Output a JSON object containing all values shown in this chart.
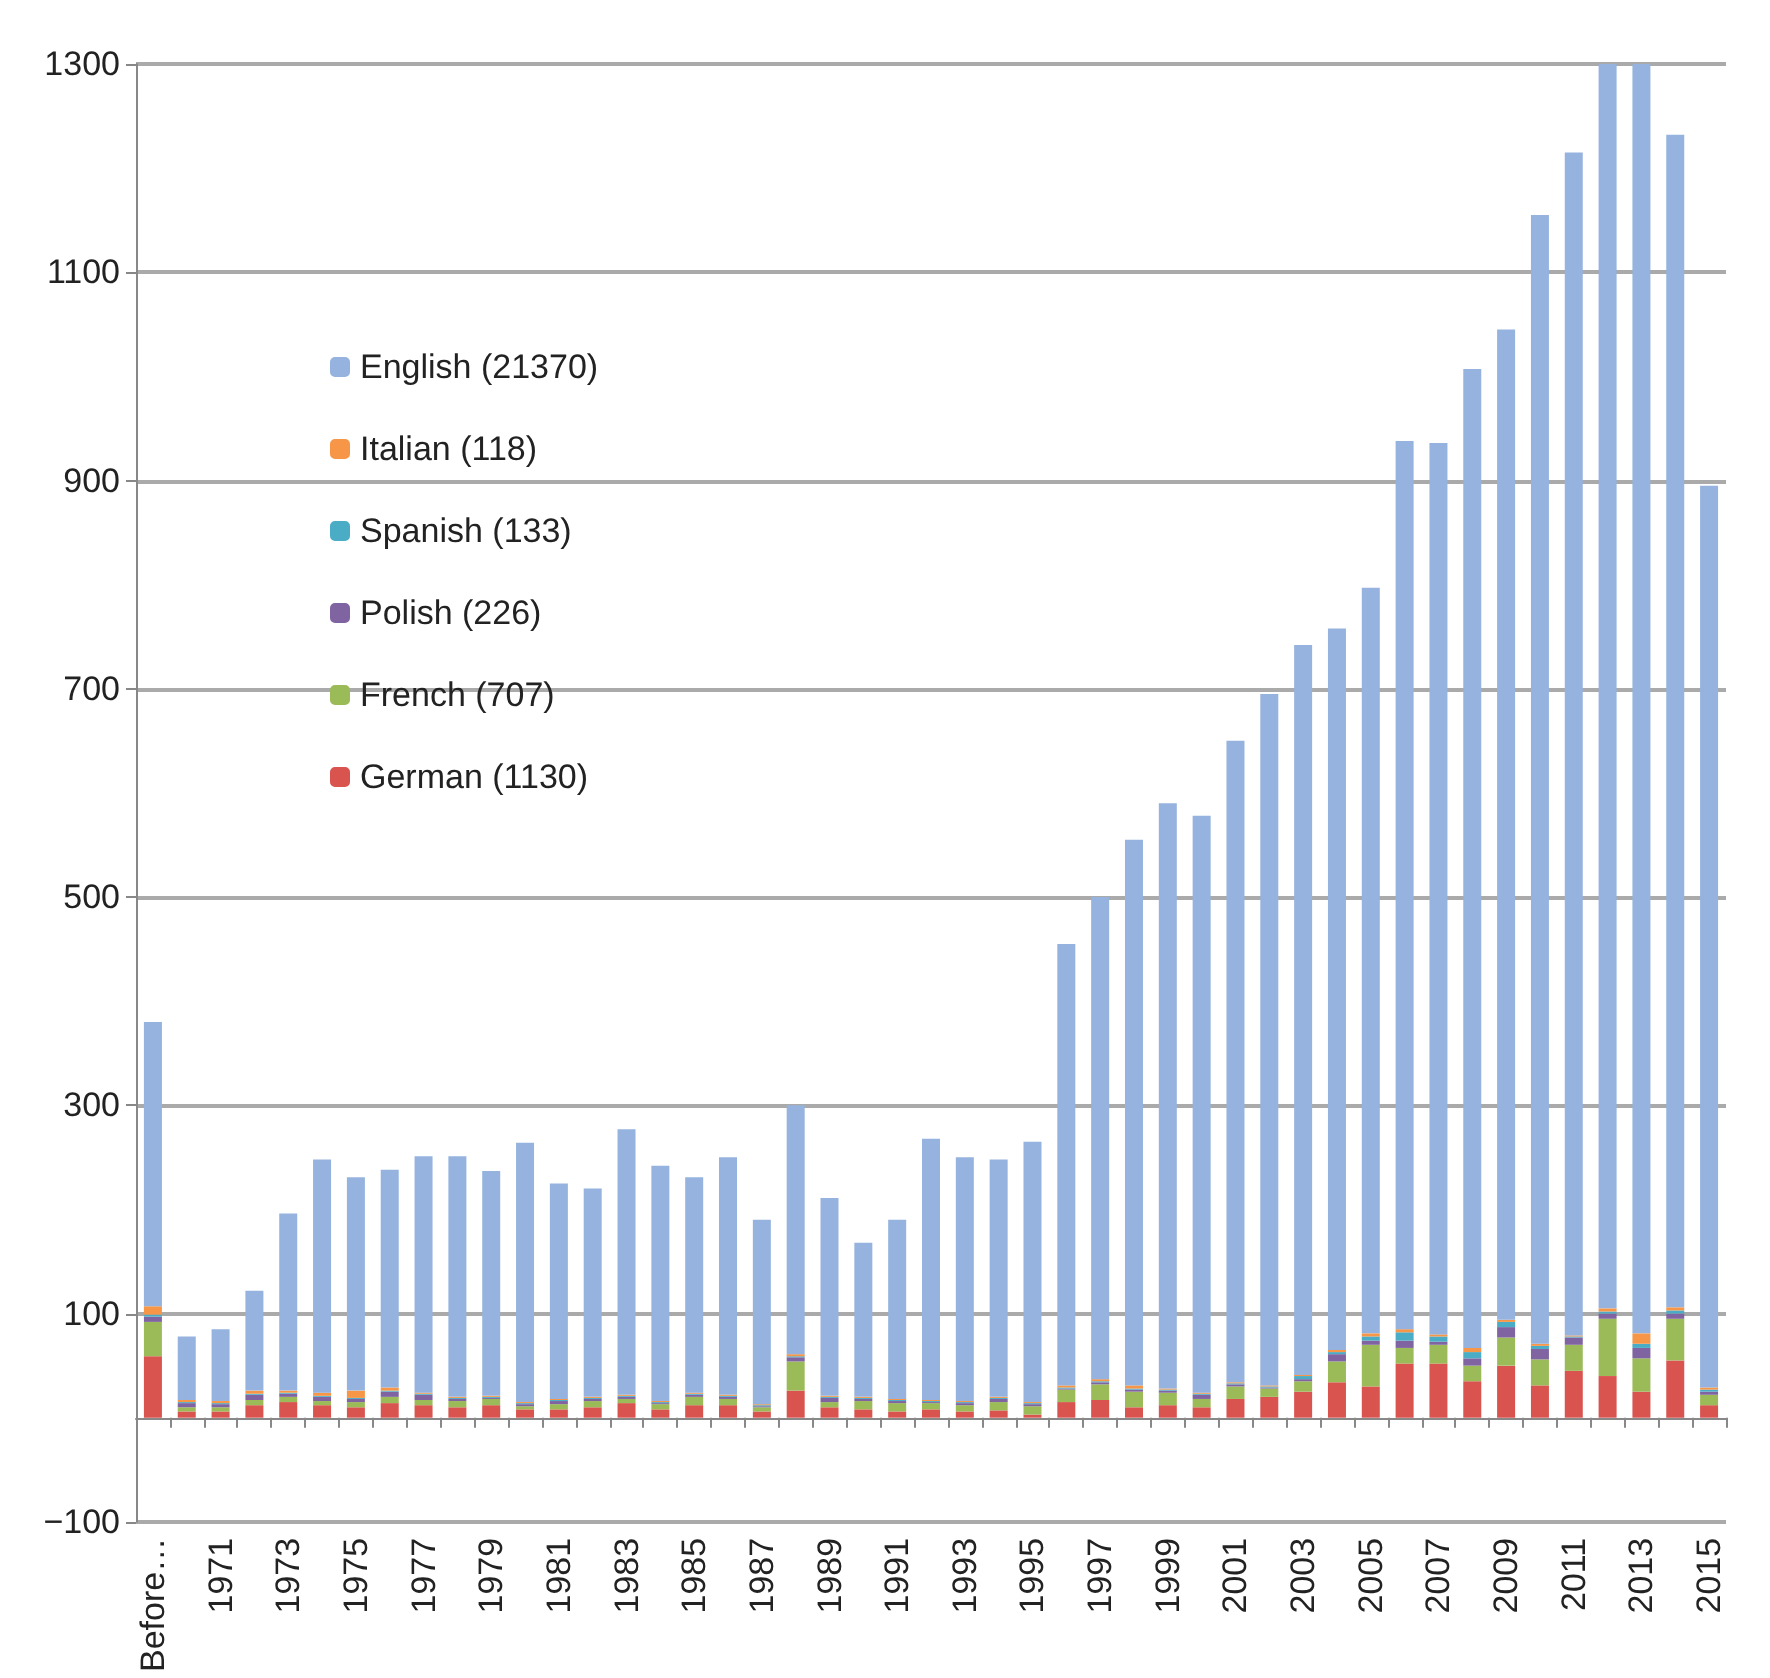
{
  "chart_data": {
    "type": "bar",
    "stacked": true,
    "grid": "y",
    "legend": "top left",
    "categories": [
      "Before…",
      null,
      "1971",
      null,
      "1973",
      null,
      "1975",
      null,
      "1977",
      null,
      "1979",
      null,
      "1981",
      null,
      "1983",
      null,
      "1985",
      null,
      "1987",
      null,
      "1989",
      null,
      "1991",
      null,
      "1993",
      null,
      "1995",
      null,
      "1997",
      null,
      "1999",
      null,
      "2001",
      null,
      "2003",
      null,
      "2005",
      null,
      "2007",
      null,
      "2009",
      null,
      "2011",
      null,
      "2013",
      null,
      "2015"
    ],
    "ylim": [
      -100,
      1300
    ],
    "yticks": [
      {
        "value": -100,
        "label": "−100"
      },
      100,
      300,
      500,
      700,
      900,
      1100,
      1300
    ],
    "series": [
      {
        "name": "German (1130)",
        "color": "#d9534f",
        "values": [
          59,
          6,
          6,
          12,
          15,
          12,
          10,
          14,
          12,
          10,
          12,
          8,
          8,
          10,
          14,
          8,
          12,
          12,
          6,
          26,
          10,
          8,
          6,
          8,
          6,
          7,
          3,
          15,
          17,
          10,
          12,
          10,
          18,
          20,
          25,
          34,
          30,
          52,
          52,
          35,
          50,
          31,
          45,
          40,
          25,
          55,
          12
        ]
      },
      {
        "name": "French (707)",
        "color": "#9bbb59",
        "values": [
          33,
          4,
          4,
          5,
          5,
          4,
          5,
          6,
          5,
          6,
          6,
          3,
          5,
          6,
          4,
          5,
          8,
          6,
          4,
          28,
          5,
          8,
          8,
          6,
          6,
          8,
          8,
          12,
          15,
          15,
          12,
          8,
          12,
          8,
          10,
          20,
          40,
          15,
          18,
          15,
          27,
          25,
          25,
          55,
          32,
          40,
          10
        ]
      },
      {
        "name": "Polish (226)",
        "color": "#8064a2",
        "values": [
          5,
          4,
          3,
          5,
          3,
          4,
          3,
          5,
          5,
          2,
          1,
          2,
          3,
          2,
          2,
          1,
          2,
          2,
          1,
          4,
          4,
          2,
          2,
          1,
          2,
          3,
          2,
          1,
          2,
          2,
          2,
          4,
          2,
          1,
          2,
          7,
          4,
          7,
          3,
          7,
          10,
          10,
          7,
          5,
          10,
          5,
          3
        ]
      },
      {
        "name": "Spanish (133)",
        "color": "#4bacc6",
        "values": [
          2,
          1,
          1,
          1,
          1,
          1,
          1,
          1,
          1,
          1,
          1,
          1,
          1,
          1,
          1,
          1,
          1,
          1,
          1,
          1,
          1,
          1,
          1,
          1,
          1,
          1,
          1,
          1,
          1,
          1,
          1,
          1,
          1,
          1,
          3,
          2,
          4,
          8,
          5,
          6,
          5,
          3,
          1,
          2,
          4,
          3,
          2
        ]
      },
      {
        "name": "Italian (118)",
        "color": "#f79646",
        "values": [
          8,
          2,
          2,
          3,
          2,
          3,
          7,
          3,
          1,
          1,
          1,
          1,
          1,
          1,
          1,
          1,
          1,
          1,
          1,
          2,
          1,
          1,
          1,
          1,
          1,
          1,
          1,
          2,
          2,
          3,
          1,
          1,
          1,
          1,
          1,
          2,
          3,
          3,
          2,
          4,
          2,
          2,
          1,
          3,
          10,
          3,
          2
        ]
      },
      {
        "name": "English (21370)",
        "color": "#95b3de",
        "values": [
          273,
          61,
          69,
          96,
          170,
          224,
          205,
          209,
          227,
          231,
          216,
          249,
          207,
          200,
          255,
          226,
          207,
          228,
          177,
          239,
          190,
          148,
          172,
          251,
          234,
          228,
          250,
          424,
          463,
          524,
          562,
          554,
          616,
          664,
          701,
          693,
          716,
          853,
          856,
          940,
          951,
          1084,
          1136,
          1195,
          1219,
          1126,
          866
        ]
      }
    ]
  }
}
